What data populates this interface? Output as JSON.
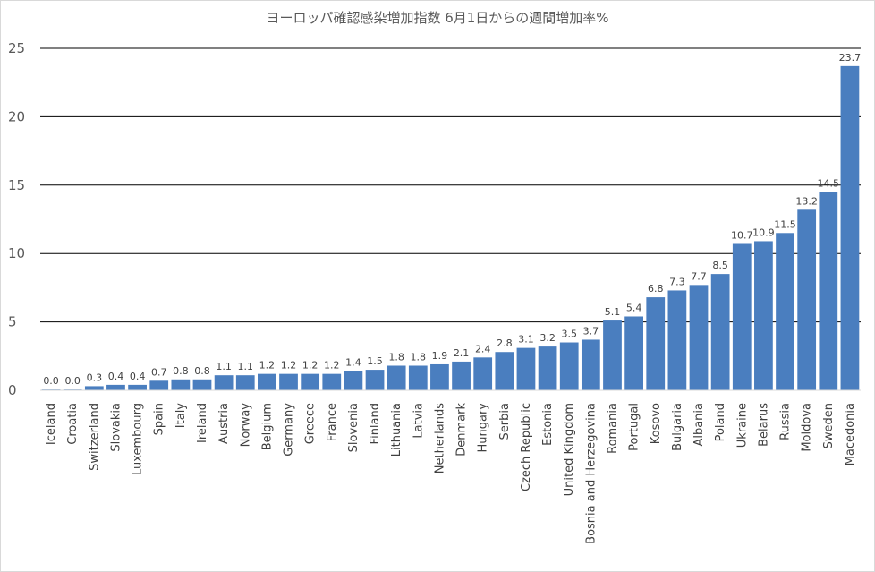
{
  "chart_data": {
    "type": "bar",
    "title": "ヨーロッパ確認感染増加指数 6月1日からの週間増加率%",
    "xlabel": "",
    "ylabel": "",
    "ylim": [
      0,
      25
    ],
    "yticks": [
      0,
      5,
      10,
      15,
      20,
      25
    ],
    "grid": true,
    "legend": "none",
    "bar_color": "#4a7ebf",
    "categories": [
      "Iceland",
      "Croatia",
      "Switzerland",
      "Slovakia",
      "Luxembourg",
      "Spain",
      "Italy",
      "Ireland",
      "Austria",
      "Norway",
      "Belgium",
      "Germany",
      "Greece",
      "France",
      "Slovenia",
      "Finland",
      "Lithuania",
      "Latvia",
      "Netherlands",
      "Denmark",
      "Hungary",
      "Serbia",
      "Czech Republic",
      "Estonia",
      "United Kingdom",
      "Bosnia and Herzegovina",
      "Romania",
      "Portugal",
      "Kosovo",
      "Bulgaria",
      "Albania",
      "Poland",
      "Ukraine",
      "Belarus",
      "Russia",
      "Moldova",
      "Sweden",
      "Macedonia"
    ],
    "values": [
      0.0,
      0.0,
      0.3,
      0.4,
      0.4,
      0.7,
      0.8,
      0.8,
      1.1,
      1.1,
      1.2,
      1.2,
      1.2,
      1.2,
      1.4,
      1.5,
      1.8,
      1.8,
      1.9,
      2.1,
      2.4,
      2.8,
      3.1,
      3.2,
      3.5,
      3.7,
      5.1,
      5.4,
      6.8,
      7.3,
      7.7,
      8.5,
      10.7,
      10.9,
      11.5,
      13.2,
      14.5,
      23.7
    ],
    "value_labels": [
      "0.0",
      "0.0",
      "0.3",
      "0.4",
      "0.4",
      "0.7",
      "0.8",
      "0.8",
      "1.1",
      "1.1",
      "1.2",
      "1.2",
      "1.2",
      "1.2",
      "1.4",
      "1.5",
      "1.8",
      "1.8",
      "1.9",
      "2.1",
      "2.4",
      "2.8",
      "3.1",
      "3.2",
      "3.5",
      "3.7",
      "5.1",
      "5.4",
      "6.8",
      "7.3",
      "7.7",
      "8.5",
      "10.7",
      "10.9",
      "11.5",
      "13.2",
      "14.5",
      "23.7"
    ]
  }
}
